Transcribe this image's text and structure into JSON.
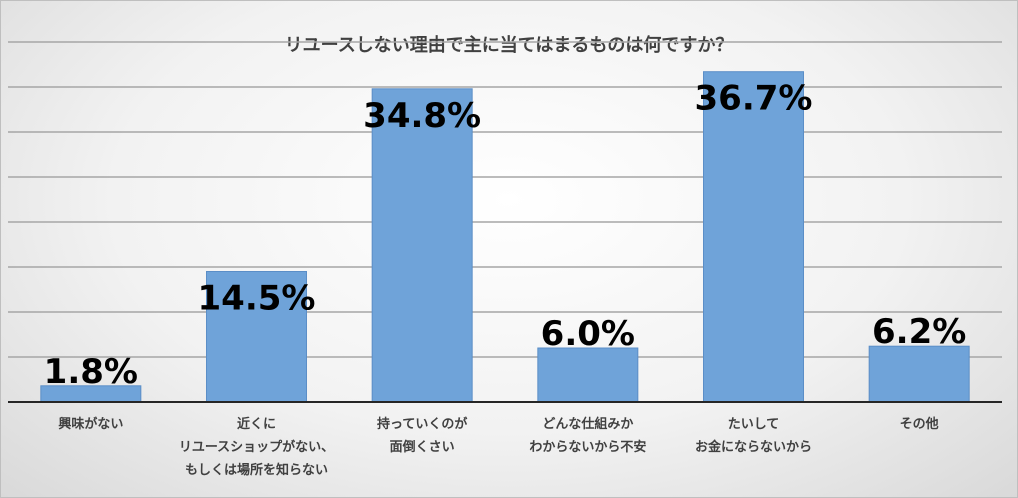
{
  "chart_data": {
    "type": "bar",
    "title": "リユースしない理由で主に当てはまるものは何ですか？",
    "categories": [
      [
        "興味がない"
      ],
      [
        "近くに",
        "リユースショップがない、",
        "もしくは場所を知らない"
      ],
      [
        "持っていくのが",
        "面倒くさい"
      ],
      [
        "どんな仕組みか",
        "わからないから不安"
      ],
      [
        "たいして",
        "お金にならないから"
      ],
      [
        "その他"
      ]
    ],
    "values": [
      1.8,
      14.5,
      34.8,
      6.0,
      36.7,
      6.2
    ],
    "data_labels": [
      "1.8%",
      "14.5%",
      "34.8%",
      "6.0%",
      "36.7%",
      "6.2%"
    ],
    "ylim": [
      0,
      40
    ],
    "grid": true,
    "bar_color": "#6fa3d9",
    "bar_border_color": "#5b8ec7",
    "grid_color": "#a6a6a6",
    "axis_color": "#262626"
  }
}
